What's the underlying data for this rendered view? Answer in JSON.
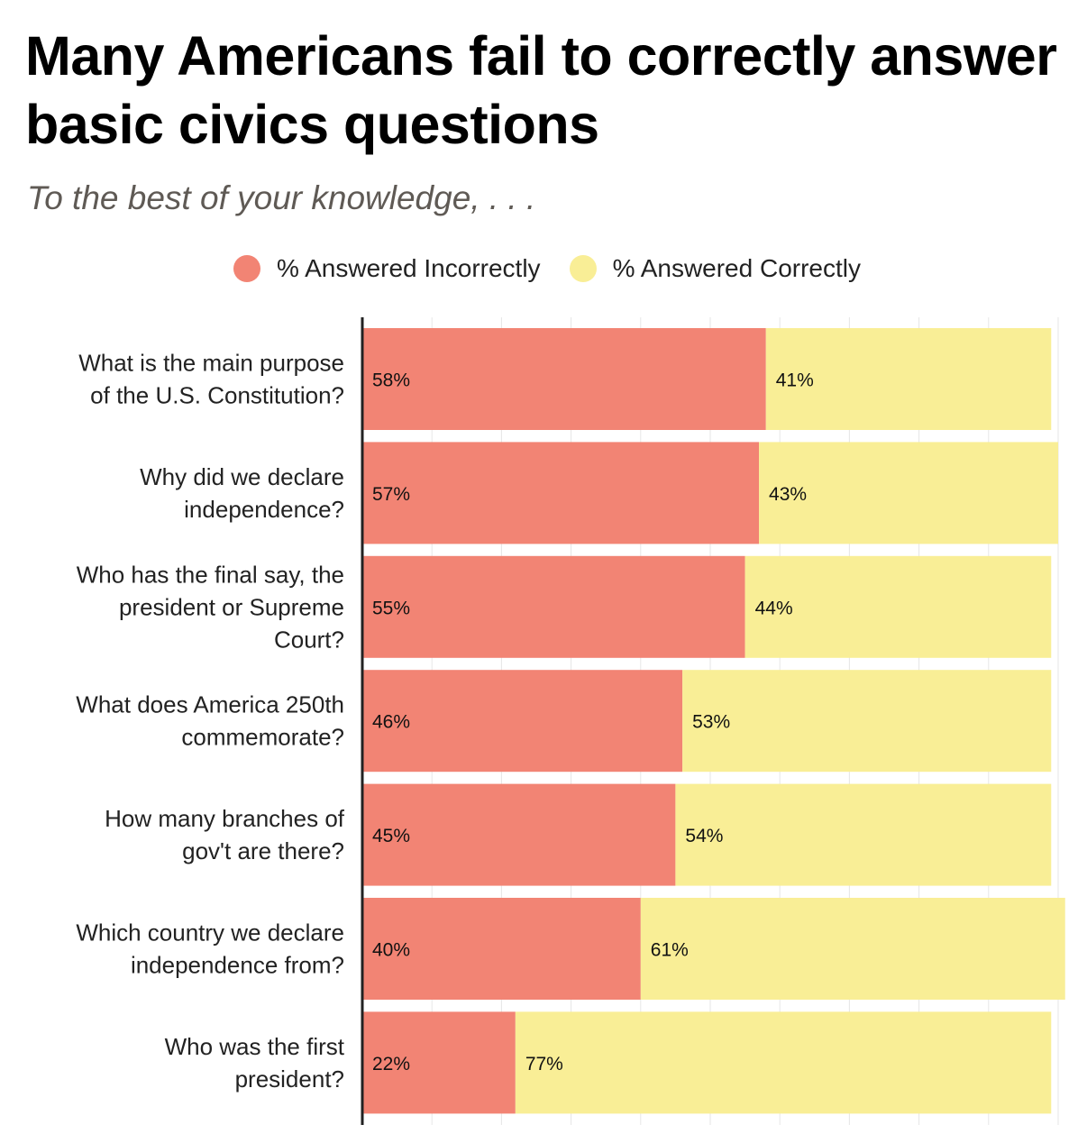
{
  "chart_data": {
    "type": "bar",
    "orientation": "horizontal",
    "stacked": true,
    "title": "Many Americans fail to correctly answer basic civics questions",
    "subtitle": "To the best of your knowledge, . . .",
    "categories": [
      "What is the main purpose of the U.S. Constitution?",
      "Why did we declare independence?",
      "Who has the final say, the president or Supreme Court?",
      "What does America 250th commemorate?",
      "How many branches of gov't are there?",
      "Which country we declare independence from?",
      "Who was the first president?"
    ],
    "category_lines": [
      [
        "What is the main purpose",
        "of the U.S. Constitution?"
      ],
      [
        "Why did we declare",
        "independence?"
      ],
      [
        "Who has the final say, the",
        "president or Supreme",
        "Court?"
      ],
      [
        "What does America 250th",
        "commemorate?"
      ],
      [
        "How many branches of",
        "gov't are there?"
      ],
      [
        "Which country we declare",
        "independence from?"
      ],
      [
        "Who was the first",
        "president?"
      ]
    ],
    "series": [
      {
        "name": "% Answered Incorrectly",
        "color": "#f28474",
        "values": [
          58,
          57,
          55,
          46,
          45,
          40,
          22
        ],
        "labels": [
          "58%",
          "57%",
          "55%",
          "46%",
          "45%",
          "40%",
          "22%"
        ]
      },
      {
        "name": "% Answered Correctly",
        "color": "#f9ee96",
        "values": [
          41,
          43,
          44,
          53,
          54,
          61,
          77
        ],
        "labels": [
          "41%",
          "43%",
          "44%",
          "53%",
          "54%",
          "61%",
          "77%"
        ]
      }
    ],
    "xlim": [
      0,
      100
    ],
    "grid": true,
    "legend": "top-center"
  }
}
